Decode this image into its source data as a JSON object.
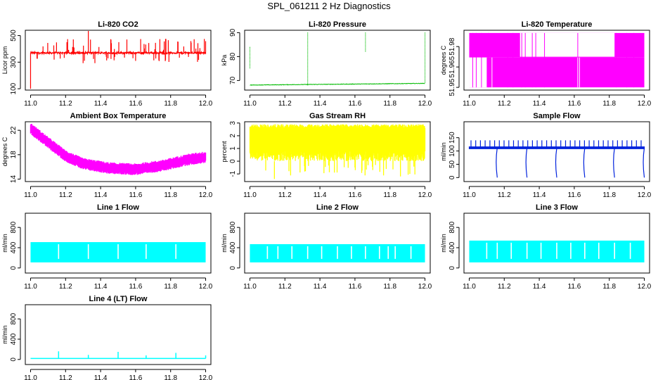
{
  "figure": {
    "title": "SPL_061211  2 Hz Diagnostics"
  },
  "chart_data": [
    {
      "type": "line",
      "title": "Li-820 CO2",
      "ylabel": "Licor ppm",
      "color": "#ff0000",
      "xlim": [
        10.97,
        12.03
      ],
      "ylim": [
        90,
        540
      ],
      "xticks": [
        11.0,
        11.2,
        11.4,
        11.6,
        11.8,
        12.0
      ],
      "xtick_labels": [
        "11.0",
        "11.2",
        "11.4",
        "11.6",
        "11.8",
        "12.0"
      ],
      "yticks": [
        100,
        300,
        500
      ],
      "ytick_labels": [
        "100",
        "300",
        "500"
      ],
      "pattern": {
        "base": 370,
        "noise": 14,
        "spike_every": 0.045,
        "spike_height": 440,
        "drop_at": [
          11.0
        ],
        "drop_to": 100
      }
    },
    {
      "type": "line",
      "title": "Li-820 Pressure",
      "ylabel": "kPa",
      "color": "#00bb00",
      "xlim": [
        10.97,
        12.03
      ],
      "ylim": [
        66,
        91
      ],
      "xticks": [
        11.0,
        11.2,
        11.4,
        11.6,
        11.8,
        12.0
      ],
      "xtick_labels": [
        "11.0",
        "11.2",
        "11.4",
        "11.6",
        "11.8",
        "12.0"
      ],
      "yticks": [
        70,
        80,
        90
      ],
      "ytick_labels": [
        "70",
        "80",
        "90"
      ],
      "pattern": {
        "base_start": 68.1,
        "base_end": 68.8,
        "noise": 0.2,
        "spikes": [
          [
            11.0,
            84,
            75
          ],
          [
            11.33,
            90,
            68
          ],
          [
            11.66,
            90,
            82
          ],
          [
            12.0,
            90,
            69
          ]
        ]
      }
    },
    {
      "type": "line",
      "title": "Li-820 Temperature",
      "ylabel": "degrees C",
      "color": "#ff00ff",
      "xlim": [
        10.97,
        12.03
      ],
      "ylim": [
        51.948,
        51.992
      ],
      "xticks": [
        11.0,
        11.2,
        11.4,
        11.6,
        11.8,
        12.0
      ],
      "xtick_labels": [
        "11.0",
        "11.2",
        "11.4",
        "11.6",
        "11.8",
        "12.0"
      ],
      "yticks": [
        51.95,
        51.965,
        51.98
      ],
      "ytick_labels": [
        "51.95",
        "51.965",
        "51.98"
      ],
      "pattern": {
        "low": 51.95,
        "high": 51.99,
        "mid": 51.972
      }
    },
    {
      "type": "line",
      "title": "Ambient Box Temperature",
      "ylabel": "degrees C",
      "color": "#ff00ff",
      "xlim": [
        10.97,
        12.03
      ],
      "ylim": [
        13.6,
        23.4
      ],
      "xticks": [
        11.0,
        11.2,
        11.4,
        11.6,
        11.8,
        12.0
      ],
      "xtick_labels": [
        "11.0",
        "11.2",
        "11.4",
        "11.6",
        "11.8",
        "12.0"
      ],
      "yticks": [
        14,
        18,
        22
      ],
      "ytick_labels": [
        "14",
        "18",
        "22"
      ],
      "pattern": {
        "curve": [
          [
            11.0,
            22.3
          ],
          [
            11.1,
            20.0
          ],
          [
            11.2,
            17.8
          ],
          [
            11.3,
            16.5
          ],
          [
            11.45,
            15.8
          ],
          [
            11.6,
            15.6
          ],
          [
            11.75,
            16.2
          ],
          [
            11.9,
            17.2
          ],
          [
            12.0,
            17.6
          ]
        ],
        "noise": 1.1
      }
    },
    {
      "type": "line",
      "title": "Gas Stream RH",
      "ylabel": "percent",
      "color": "#ffff00",
      "xlim": [
        10.97,
        12.03
      ],
      "ylim": [
        -1.6,
        3.1
      ],
      "xticks": [
        11.0,
        11.2,
        11.4,
        11.6,
        11.8,
        12.0
      ],
      "xtick_labels": [
        "11.0",
        "11.2",
        "11.4",
        "11.6",
        "11.8",
        "12.0"
      ],
      "yticks": [
        -1,
        0,
        1,
        2,
        3
      ],
      "ytick_labels": [
        "-1",
        "0",
        "1",
        "2",
        "3"
      ],
      "pattern": {
        "top": 2.6,
        "bottom": 0.0,
        "min_dip": -1.4
      }
    },
    {
      "type": "line",
      "title": "Sample Flow",
      "ylabel": "ml/min",
      "color": "#0022dd",
      "xlim": [
        10.97,
        12.03
      ],
      "ylim": [
        -15,
        210
      ],
      "xticks": [
        11.0,
        11.2,
        11.4,
        11.6,
        11.8,
        12.0
      ],
      "xtick_labels": [
        "11.0",
        "11.2",
        "11.4",
        "11.6",
        "11.8",
        "12.0"
      ],
      "yticks": [
        0,
        50,
        100,
        150
      ],
      "ytick_labels": [
        "0",
        "50",
        "100",
        "150"
      ],
      "pattern": {
        "base": 112,
        "noise": 5,
        "spike_every": 0.027,
        "spike_height": 140,
        "drops": [
          11.16,
          11.33,
          11.5,
          11.66,
          11.83,
          12.0
        ]
      }
    },
    {
      "type": "area",
      "title": "Line 1 Flow",
      "ylabel": "ml/min",
      "color": "#00ffff",
      "xlim": [
        10.97,
        12.03
      ],
      "ylim": [
        -100,
        1080
      ],
      "xticks": [
        11.0,
        11.2,
        11.4,
        11.6,
        11.8,
        12.0
      ],
      "xtick_labels": [
        "11.0",
        "11.2",
        "11.4",
        "11.6",
        "11.8",
        "12.0"
      ],
      "yticks": [
        0,
        400,
        800
      ],
      "ytick_labels": [
        "0",
        "400",
        "800"
      ],
      "pattern": {
        "low": 110,
        "high": 510,
        "gaps": [
          11.16,
          11.33,
          11.5,
          11.66,
          11.83
        ]
      }
    },
    {
      "type": "area",
      "title": "Line 2 Flow",
      "ylabel": "ml/min",
      "color": "#00ffff",
      "xlim": [
        10.97,
        12.03
      ],
      "ylim": [
        -100,
        1080
      ],
      "xticks": [
        11.0,
        11.2,
        11.4,
        11.6,
        11.8,
        12.0
      ],
      "xtick_labels": [
        "11.0",
        "11.2",
        "11.4",
        "11.6",
        "11.8",
        "12.0"
      ],
      "yticks": [
        0,
        400,
        800
      ],
      "ytick_labels": [
        "0",
        "400",
        "800"
      ],
      "pattern": {
        "low": 110,
        "high": 470,
        "gaps": [
          11.1,
          11.16,
          11.24,
          11.33,
          11.41,
          11.5,
          11.58,
          11.66,
          11.74,
          11.79,
          11.83,
          11.92
        ]
      }
    },
    {
      "type": "area",
      "title": "Line 3 Flow",
      "ylabel": "ml/min",
      "color": "#00ffff",
      "xlim": [
        10.97,
        12.03
      ],
      "ylim": [
        -100,
        1080
      ],
      "xticks": [
        11.0,
        11.2,
        11.4,
        11.6,
        11.8,
        12.0
      ],
      "xtick_labels": [
        "11.0",
        "11.2",
        "11.4",
        "11.6",
        "11.8",
        "12.0"
      ],
      "yticks": [
        0,
        400,
        800
      ],
      "ytick_labels": [
        "0",
        "400",
        "800"
      ],
      "pattern": {
        "low": 110,
        "high": 540,
        "gaps": [
          11.1,
          11.16,
          11.24,
          11.33,
          11.41,
          11.5,
          11.58,
          11.66,
          11.74,
          11.83,
          11.92
        ]
      }
    },
    {
      "type": "line",
      "title": "Line 4 (LT) Flow",
      "ylabel": "ml/min",
      "color": "#00ffff",
      "xlim": [
        10.97,
        12.03
      ],
      "ylim": [
        -100,
        1080
      ],
      "xticks": [
        11.0,
        11.2,
        11.4,
        11.6,
        11.8,
        12.0
      ],
      "xtick_labels": [
        "11.0",
        "11.2",
        "11.4",
        "11.6",
        "11.8",
        "12.0"
      ],
      "yticks": [
        0,
        400,
        800
      ],
      "ytick_labels": [
        "0",
        "400",
        "800"
      ],
      "pattern": {
        "base": 20,
        "spikes": [
          [
            11.16,
            160
          ],
          [
            11.33,
            90
          ],
          [
            11.5,
            150
          ],
          [
            11.66,
            80
          ],
          [
            11.83,
            130
          ],
          [
            12.0,
            80
          ]
        ]
      }
    }
  ]
}
